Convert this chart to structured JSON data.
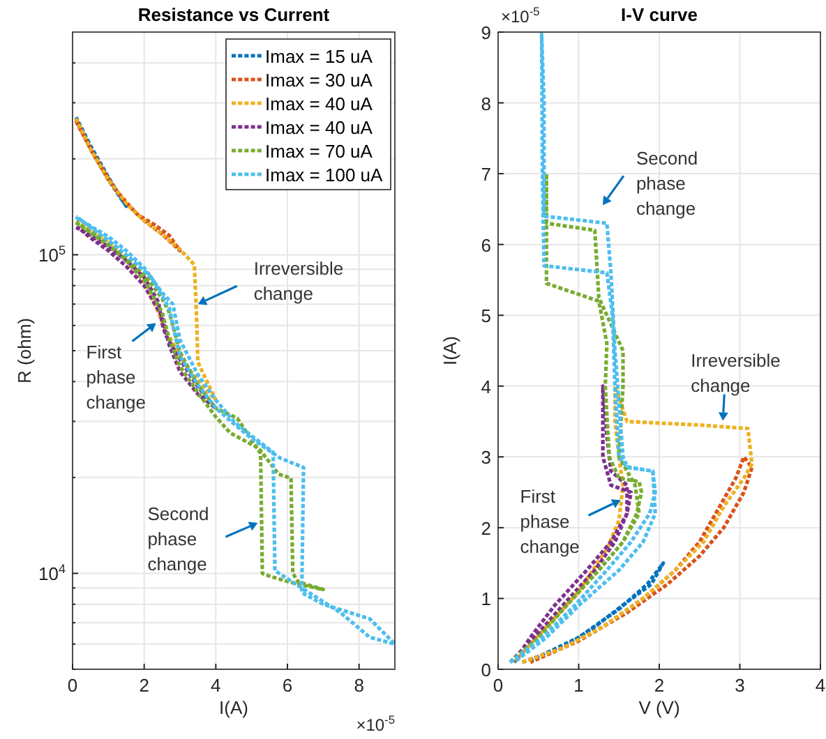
{
  "chart_data": [
    {
      "type": "line",
      "title": "Resistance vs Current",
      "xlabel": "I(A)",
      "ylabel": "R (ohm)",
      "log": "y",
      "grid": true,
      "legend": "top right",
      "line_style": "dotted",
      "xlim": [
        0,
        9
      ],
      "xticks": [
        0,
        2,
        4,
        6,
        8
      ],
      "ylim": [
        5000,
        500000
      ],
      "yticks": [
        {
          "value": 5000,
          "label": null
        },
        {
          "value": 6000,
          "label": null
        },
        {
          "value": 7000,
          "label": null
        },
        {
          "value": 8000,
          "label": null
        },
        {
          "value": 9000,
          "label": null
        },
        {
          "value": 10000,
          "label": "10$^{4}$"
        },
        {
          "value": 20000,
          "label": null
        },
        {
          "value": 30000,
          "label": null
        },
        {
          "value": 40000,
          "label": null
        },
        {
          "value": 50000,
          "label": null
        },
        {
          "value": 60000,
          "label": null
        },
        {
          "value": 70000,
          "label": null
        },
        {
          "value": 80000,
          "label": null
        },
        {
          "value": 90000,
          "label": null
        },
        {
          "value": 100000,
          "label": "10$^{5}$"
        },
        {
          "value": 200000,
          "label": null
        },
        {
          "value": 300000,
          "label": null
        },
        {
          "value": 400000,
          "label": null
        }
      ],
      "annotations": [
        {
          "text": "Irreversible change",
          "x": 3.5,
          "y": 70000
        },
        {
          "text": "First phase change",
          "x": 2.33,
          "y": 61000
        },
        {
          "text": "Second phase change",
          "x": 5.17,
          "y": 14400
        },
        "×10$^{-5}$"
      ],
      "series": [
        {
          "name": "Imax = 15 uA",
          "color": "#0072bd",
          "x": [
            0.1,
            0.5,
            1.0,
            1.5,
            1.0,
            0.5,
            0.1
          ],
          "values": [
            265000,
            215000,
            172000,
            142000,
            175000,
            220000,
            270000
          ]
        },
        {
          "name": "Imax = 30 uA",
          "color": "#d95319",
          "x": [
            0.1,
            0.5,
            1.0,
            1.5,
            2.0,
            2.5,
            3.0,
            2.7,
            2.3,
            1.8,
            1.2,
            0.6,
            0.1
          ],
          "values": [
            265000,
            215000,
            172000,
            145000,
            128000,
            116000,
            103000,
            115000,
            124000,
            134000,
            160000,
            205000,
            262000
          ]
        },
        {
          "name": "Imax = 40 uA",
          "color": "#edb120",
          "x": [
            0.1,
            0.5,
            1.0,
            1.5,
            2.0,
            2.5,
            3.0,
            3.4,
            3.45,
            3.5,
            4.0,
            3.6,
            3.1,
            2.6,
            2.3,
            2.0,
            1.5,
            1.0,
            0.5,
            0.1
          ],
          "values": [
            268000,
            215000,
            172000,
            145000,
            128000,
            116000,
            104000,
            93000,
            70000,
            46000,
            35000,
            39000,
            46000,
            58000,
            70000,
            82000,
            96000,
            110000,
            120000,
            131000
          ]
        },
        {
          "name": "Imax = 40 uA",
          "color": "#7e2f8e",
          "x": [
            0.1,
            0.5,
            1.0,
            1.5,
            2.0,
            2.4,
            2.5,
            2.6,
            3.0,
            3.5,
            4.0,
            3.5,
            3.0,
            2.7,
            2.5,
            2.0,
            1.5,
            1.0,
            0.5,
            0.15
          ],
          "values": [
            122000,
            115000,
            106000,
            96000,
            85000,
            71000,
            61000,
            56000,
            47000,
            38500,
            33000,
            36500,
            43000,
            52000,
            64000,
            80000,
            92000,
            103000,
            113000,
            122000
          ]
        },
        {
          "name": "Imax = 70 uA",
          "color": "#77ac30",
          "x": [
            0.1,
            0.5,
            1.0,
            1.5,
            2.0,
            2.5,
            2.7,
            3.0,
            3.5,
            4.0,
            4.6,
            5.0,
            5.25,
            5.3,
            5.5,
            6.2,
            7.0,
            6.3,
            6.15,
            6.1,
            5.75,
            5.2,
            4.4,
            4.0,
            3.5,
            3.0,
            2.7,
            2.5,
            2.0,
            1.5,
            1.0,
            0.5,
            0.1
          ],
          "values": [
            126000,
            118000,
            110000,
            99000,
            87000,
            73000,
            66000,
            49500,
            39000,
            33000,
            30700,
            26200,
            23800,
            10000,
            9800,
            9300,
            8900,
            9400,
            10000,
            19900,
            20500,
            24700,
            27600,
            31000,
            36900,
            44600,
            54300,
            66000,
            83400,
            96000,
            107000,
            117000,
            127000
          ]
        },
        {
          "name": "Imax = 100 uA",
          "color": "#4dbeee",
          "x": [
            0.1,
            0.5,
            1.0,
            1.5,
            2.0,
            2.5,
            2.8,
            3.0,
            3.5,
            4.0,
            4.5,
            5.0,
            5.6,
            5.65,
            6.4,
            7.5,
            8.3,
            9.0,
            8.3,
            7.0,
            6.4,
            6.45,
            5.8,
            5.0,
            4.5,
            4.0,
            3.5,
            3.0,
            2.8,
            2.7,
            2.2,
            1.5,
            1.0,
            0.5,
            0.1
          ],
          "values": [
            131000,
            123000,
            114000,
            103000,
            91000,
            76000,
            70000,
            54000,
            42000,
            35000,
            30000,
            27000,
            24000,
            10200,
            9000,
            7500,
            6300,
            6000,
            7200,
            8000,
            8700,
            21500,
            23000,
            26500,
            29500,
            33000,
            39000,
            48000,
            60000,
            68000,
            85000,
            100000,
            111000,
            122000,
            132000
          ]
        }
      ]
    },
    {
      "type": "line",
      "title": "I-V curve",
      "xlabel": "V (V)",
      "ylabel": "I(A)",
      "grid": true,
      "line_style": "dotted",
      "xlim": [
        0,
        4
      ],
      "xticks": [
        0,
        1,
        2,
        3,
        4
      ],
      "ylim": [
        0,
        9
      ],
      "yticks": [
        0,
        1,
        2,
        3,
        4,
        5,
        6,
        7,
        8,
        9
      ],
      "annotations": [
        {
          "text": "Second phase change",
          "x": 1.35,
          "y": 6.3
        },
        {
          "text": "Irreversible change",
          "x": 2.79,
          "y": 3.51
        },
        {
          "text": "First phase change",
          "x": 1.52,
          "y": 2.39
        },
        "×10$^{-5}$"
      ],
      "series": [
        {
          "color": "#0072bd",
          "x": [
            0.3,
            0.8,
            1.2,
            1.6,
            1.9,
            2.05,
            1.85,
            1.5,
            1.0,
            0.4
          ],
          "values": [
            0.1,
            0.3,
            0.6,
            0.95,
            1.2,
            1.5,
            1.2,
            0.85,
            0.45,
            0.12
          ]
        },
        {
          "color": "#d95319",
          "x": [
            0.3,
            0.8,
            1.3,
            1.8,
            2.2,
            2.5,
            2.75,
            2.95,
            3.05,
            3.15,
            3.05,
            2.8,
            2.5,
            2.1,
            1.6,
            1.0,
            0.4
          ],
          "values": [
            0.1,
            0.3,
            0.6,
            1.0,
            1.4,
            1.8,
            2.3,
            2.7,
            3.0,
            2.85,
            2.5,
            2.0,
            1.6,
            1.2,
            0.8,
            0.4,
            0.1
          ]
        },
        {
          "color": "#edb120",
          "x": [
            0.3,
            0.8,
            1.3,
            1.8,
            2.2,
            2.55,
            2.8,
            3.05,
            3.15,
            3.1,
            2.5,
            1.6,
            1.45,
            1.45,
            1.5,
            1.55,
            1.5,
            1.35,
            1.0,
            0.6,
            0.2
          ],
          "values": [
            0.1,
            0.3,
            0.6,
            1.0,
            1.4,
            1.8,
            2.3,
            2.7,
            2.9,
            3.4,
            3.45,
            3.5,
            4.0,
            3.5,
            3.0,
            2.6,
            2.1,
            1.7,
            1.1,
            0.6,
            0.1
          ]
        },
        {
          "color": "#7e2f8e",
          "x": [
            0.15,
            0.45,
            0.8,
            1.2,
            1.45,
            1.6,
            1.65,
            1.4,
            1.3,
            1.3,
            1.35,
            1.4,
            1.6,
            1.6,
            1.4,
            1.1,
            0.7,
            0.4,
            0.2
          ],
          "values": [
            0.1,
            0.45,
            0.9,
            1.4,
            1.8,
            2.2,
            2.5,
            2.6,
            3.0,
            4.0,
            3.3,
            2.8,
            2.6,
            2.2,
            1.8,
            1.4,
            0.9,
            0.45,
            0.1
          ]
        },
        {
          "color": "#77ac30",
          "x": [
            0.15,
            0.5,
            0.85,
            1.25,
            1.55,
            1.72,
            1.78,
            1.75,
            1.5,
            1.38,
            1.33,
            1.35,
            1.25,
            0.6,
            0.6,
            0.6,
            1.2,
            1.25,
            1.55,
            1.55,
            1.5,
            1.7,
            1.75,
            1.55,
            1.25,
            0.85,
            0.5,
            0.2
          ],
          "values": [
            0.1,
            0.45,
            0.9,
            1.4,
            1.8,
            2.2,
            2.5,
            2.65,
            2.7,
            3.0,
            4.0,
            4.6,
            5.2,
            5.45,
            7.0,
            6.3,
            6.2,
            5.25,
            4.5,
            4.0,
            3.0,
            2.6,
            2.2,
            1.8,
            1.4,
            0.9,
            0.45,
            0.1
          ]
        },
        {
          "color": "#4dbeee",
          "x": [
            0.15,
            0.55,
            0.95,
            1.35,
            1.65,
            1.88,
            1.95,
            1.92,
            1.6,
            1.5,
            1.45,
            1.42,
            1.35,
            0.57,
            0.55,
            0.54,
            0.57,
            0.57,
            1.35,
            1.4,
            1.45,
            1.55,
            1.6,
            1.92,
            1.95,
            1.8,
            1.5,
            1.0,
            0.6,
            0.2
          ],
          "values": [
            0.1,
            0.45,
            0.9,
            1.4,
            1.8,
            2.2,
            2.5,
            2.8,
            2.85,
            3.0,
            4.0,
            5.0,
            5.6,
            5.7,
            7.0,
            8.97,
            8.0,
            6.4,
            6.3,
            5.6,
            4.5,
            3.0,
            2.86,
            2.8,
            2.2,
            1.8,
            1.4,
            0.9,
            0.45,
            0.1
          ]
        }
      ]
    }
  ]
}
